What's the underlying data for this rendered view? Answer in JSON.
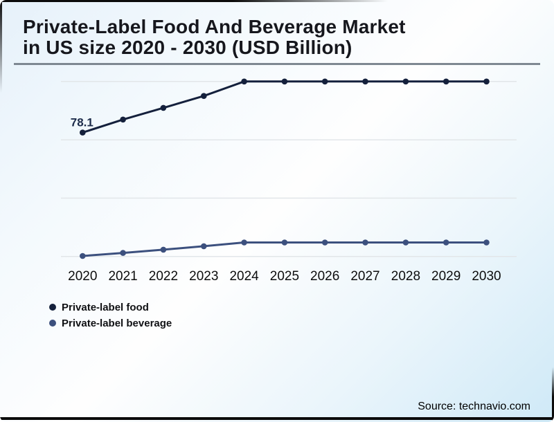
{
  "header": {
    "title_line1": "Private-Label Food And Beverage Market",
    "title_line2": "in US size 2020 - 2030 (USD Billion)"
  },
  "legend": {
    "items": [
      {
        "label": "Private-label food",
        "color": "#14203c"
      },
      {
        "label": "Private-label beverage",
        "color": "#3c507e"
      }
    ]
  },
  "footer": {
    "source": "Source: technavio.com"
  },
  "chart_data": {
    "type": "line",
    "title": "Private-Label Food And Beverage Market in US size 2020 - 2030 (USD Billion)",
    "categories": [
      "2020",
      "2021",
      "2022",
      "2023",
      "2024",
      "2025",
      "2026",
      "2027",
      "2028",
      "2029",
      "2030"
    ],
    "series": [
      {
        "name": "Private-label food",
        "color": "#14203c",
        "values": [
          78.1,
          83.7,
          88.7,
          93.8,
          100,
          100,
          100,
          100,
          100,
          100,
          100
        ],
        "shown_label": {
          "index": 0,
          "text": "78.1"
        }
      },
      {
        "name": "Private-label beverage",
        "color": "#3c507e",
        "values": [
          25.2,
          26.5,
          27.9,
          29.4,
          31,
          31,
          31,
          31,
          31,
          31,
          31
        ]
      }
    ],
    "xlabel": "",
    "ylabel": "",
    "ylim": [
      20,
      107
    ],
    "y_axis": {
      "visible": false,
      "gridlines": [
        25,
        50,
        75,
        100
      ]
    },
    "grid": true,
    "legend_position": "bottom-left"
  }
}
